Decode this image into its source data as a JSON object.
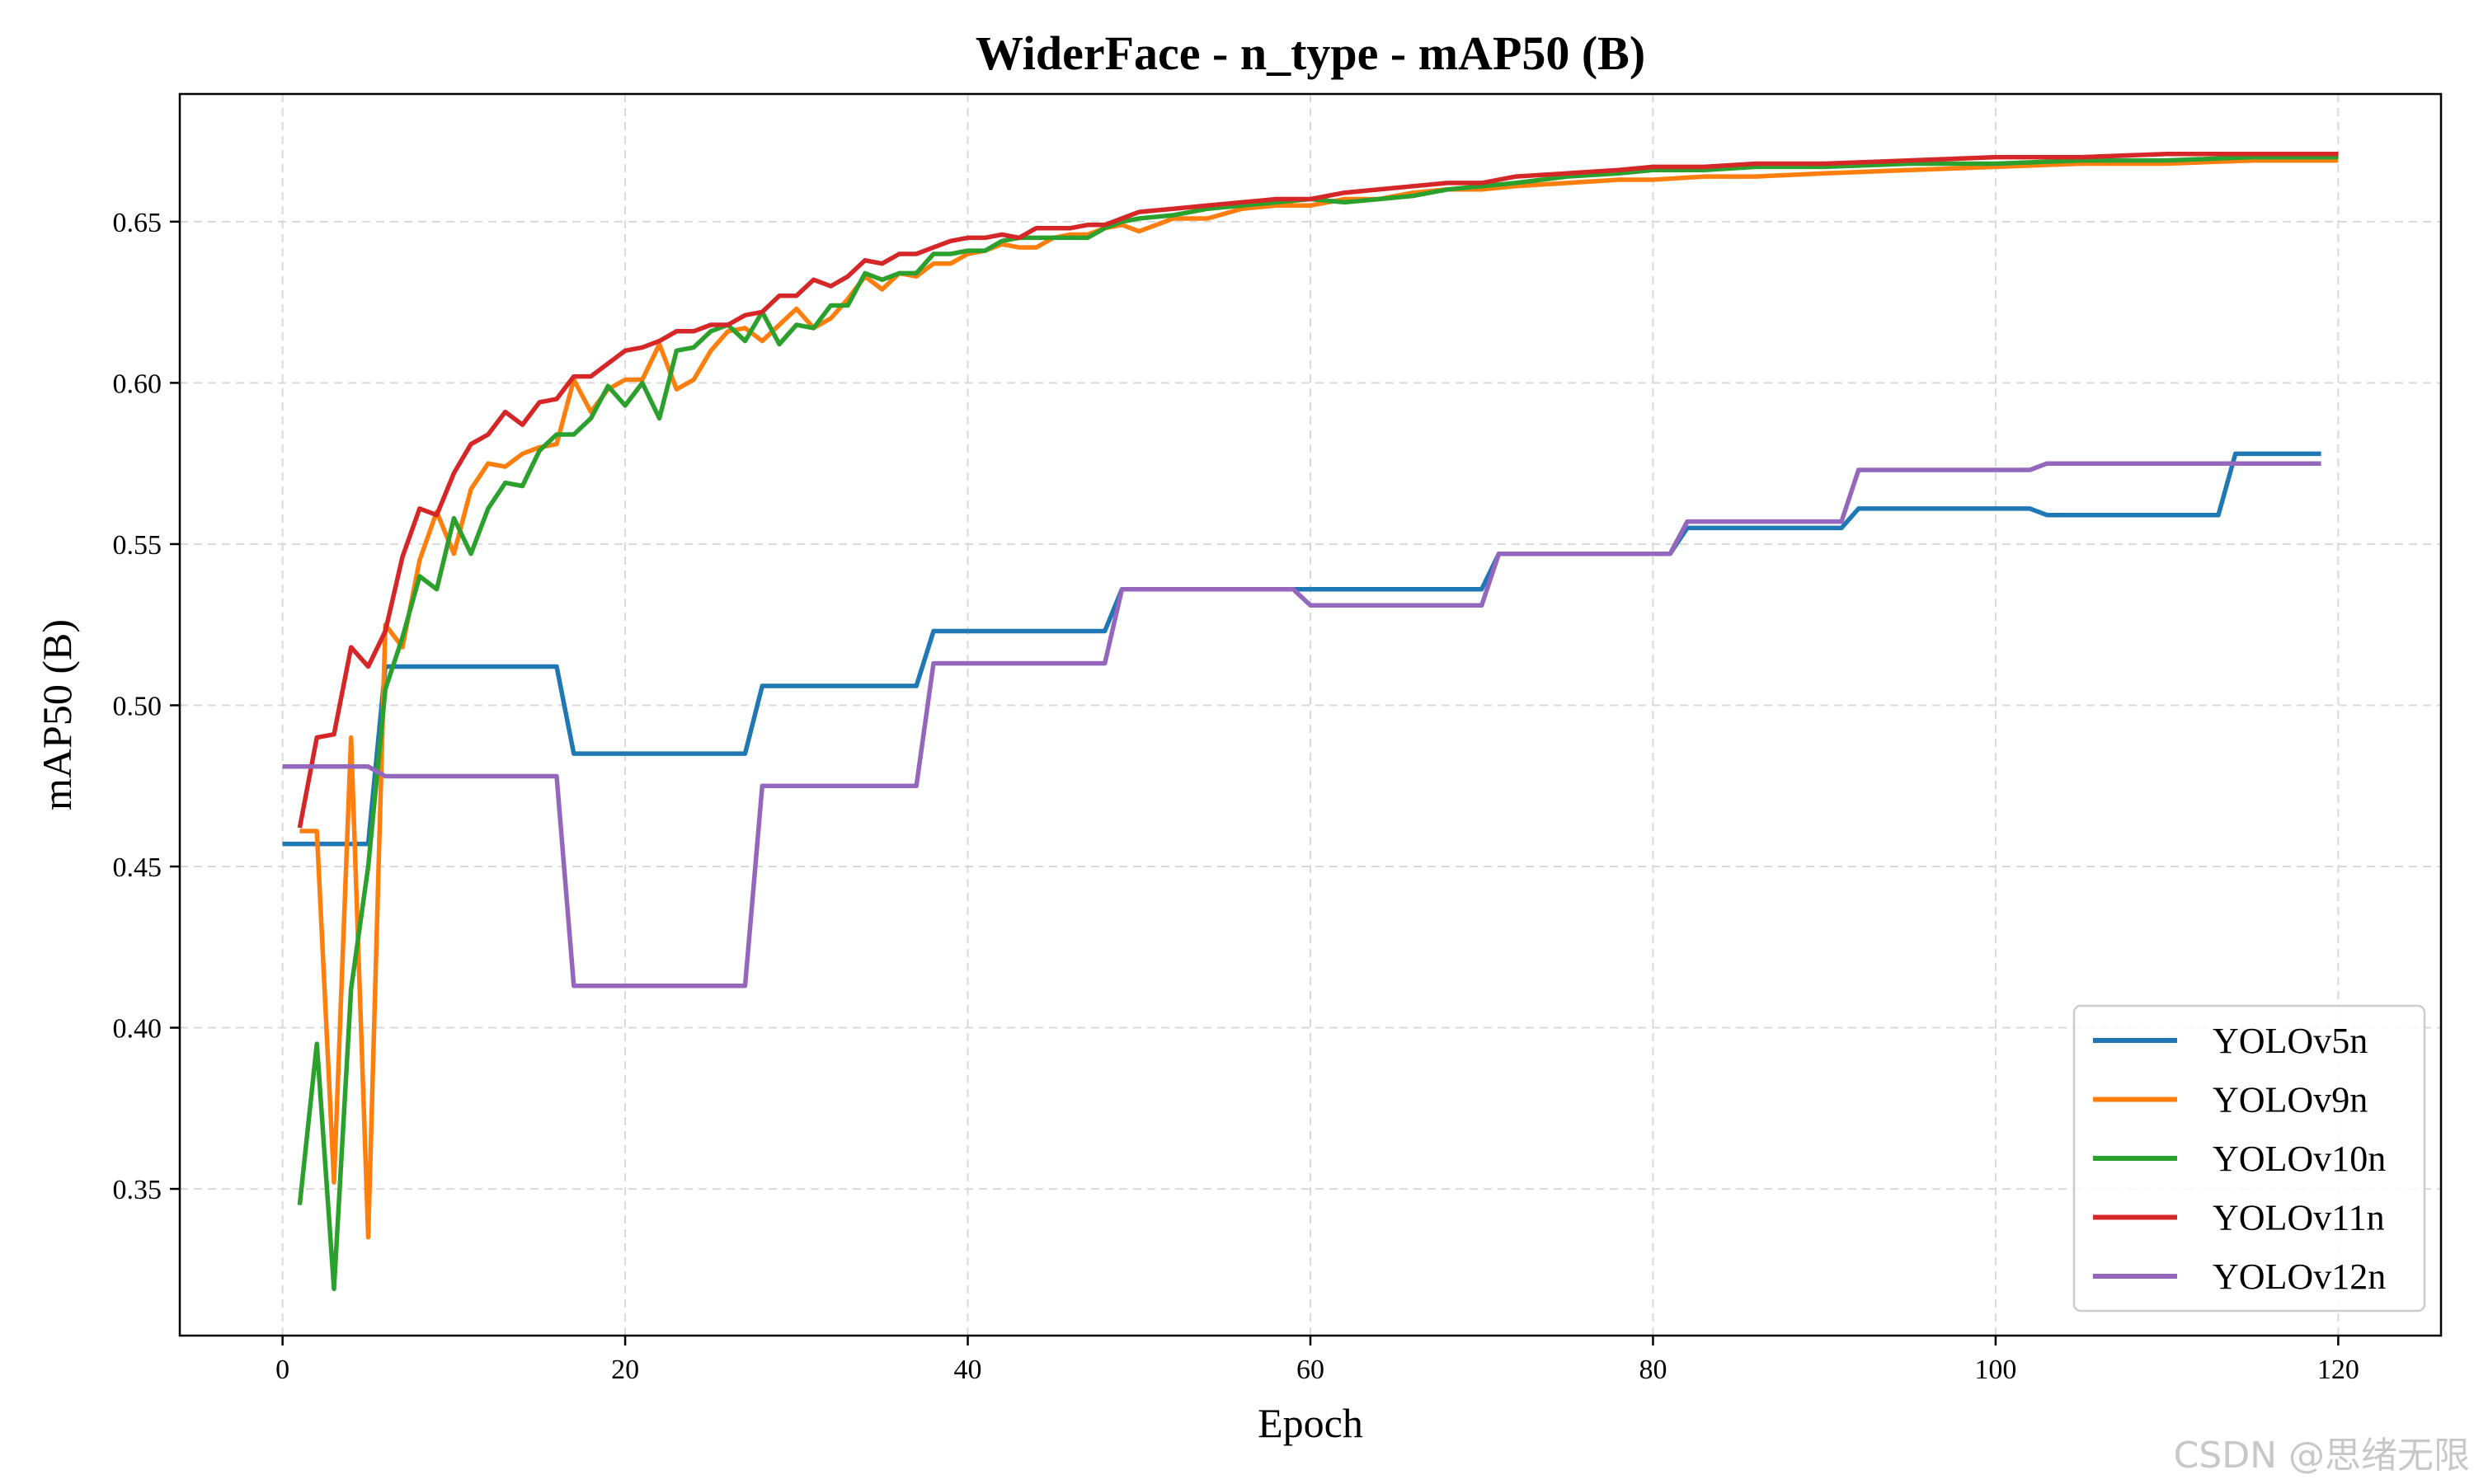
{
  "chart_data": {
    "type": "line",
    "title": "WiderFace - n_type - mAP50 (B)",
    "xlabel": "Epoch",
    "ylabel": "mAP50 (B)",
    "xlim": [
      -6,
      126
    ],
    "ylim": [
      0.3045,
      0.6896
    ],
    "xticks": [
      0,
      20,
      40,
      60,
      80,
      100,
      120
    ],
    "yticks": [
      0.35,
      0.4,
      0.45,
      0.5,
      0.55,
      0.6,
      0.65
    ],
    "ytick_labels": [
      "0.35",
      "0.40",
      "0.45",
      "0.50",
      "0.55",
      "0.60",
      "0.65"
    ],
    "grid": true,
    "legend_position": "lower-right",
    "watermark": "CSDN @思绪无限",
    "series": [
      {
        "name": "YOLOv5n",
        "color": "#1f77b4",
        "points": [
          [
            0,
            0.457
          ],
          [
            5,
            0.457
          ],
          [
            6,
            0.512
          ],
          [
            16,
            0.512
          ],
          [
            17,
            0.485
          ],
          [
            27,
            0.485
          ],
          [
            28,
            0.506
          ],
          [
            37,
            0.506
          ],
          [
            38,
            0.523
          ],
          [
            48,
            0.523
          ],
          [
            49,
            0.536
          ],
          [
            70,
            0.536
          ],
          [
            71,
            0.547
          ],
          [
            81,
            0.547
          ],
          [
            82,
            0.555
          ],
          [
            91,
            0.555
          ],
          [
            92,
            0.561
          ],
          [
            102,
            0.561
          ],
          [
            103,
            0.559
          ],
          [
            113,
            0.559
          ],
          [
            114,
            0.578
          ],
          [
            119,
            0.578
          ]
        ]
      },
      {
        "name": "YOLOv9n",
        "color": "#ff7f0e",
        "points": [
          [
            1,
            0.461
          ],
          [
            2,
            0.461
          ],
          [
            3,
            0.352
          ],
          [
            4,
            0.49
          ],
          [
            5,
            0.335
          ],
          [
            6,
            0.525
          ],
          [
            7,
            0.518
          ],
          [
            8,
            0.545
          ],
          [
            9,
            0.56
          ],
          [
            10,
            0.547
          ],
          [
            11,
            0.567
          ],
          [
            12,
            0.575
          ],
          [
            13,
            0.574
          ],
          [
            14,
            0.578
          ],
          [
            15,
            0.58
          ],
          [
            16,
            0.581
          ],
          [
            17,
            0.601
          ],
          [
            18,
            0.591
          ],
          [
            19,
            0.598
          ],
          [
            20,
            0.601
          ],
          [
            21,
            0.601
          ],
          [
            22,
            0.612
          ],
          [
            23,
            0.598
          ],
          [
            24,
            0.601
          ],
          [
            25,
            0.61
          ],
          [
            26,
            0.616
          ],
          [
            27,
            0.617
          ],
          [
            28,
            0.613
          ],
          [
            29,
            0.618
          ],
          [
            30,
            0.623
          ],
          [
            31,
            0.617
          ],
          [
            32,
            0.62
          ],
          [
            33,
            0.626
          ],
          [
            34,
            0.633
          ],
          [
            35,
            0.629
          ],
          [
            36,
            0.634
          ],
          [
            37,
            0.633
          ],
          [
            38,
            0.637
          ],
          [
            39,
            0.637
          ],
          [
            40,
            0.64
          ],
          [
            41,
            0.641
          ],
          [
            42,
            0.643
          ],
          [
            43,
            0.642
          ],
          [
            44,
            0.642
          ],
          [
            45,
            0.645
          ],
          [
            46,
            0.646
          ],
          [
            47,
            0.646
          ],
          [
            48,
            0.648
          ],
          [
            49,
            0.649
          ],
          [
            50,
            0.647
          ],
          [
            52,
            0.651
          ],
          [
            54,
            0.651
          ],
          [
            56,
            0.654
          ],
          [
            58,
            0.655
          ],
          [
            60,
            0.655
          ],
          [
            62,
            0.657
          ],
          [
            64,
            0.657
          ],
          [
            66,
            0.659
          ],
          [
            68,
            0.66
          ],
          [
            70,
            0.66
          ],
          [
            72,
            0.661
          ],
          [
            75,
            0.662
          ],
          [
            78,
            0.663
          ],
          [
            80,
            0.663
          ],
          [
            83,
            0.664
          ],
          [
            86,
            0.664
          ],
          [
            90,
            0.665
          ],
          [
            95,
            0.666
          ],
          [
            100,
            0.667
          ],
          [
            105,
            0.668
          ],
          [
            110,
            0.668
          ],
          [
            115,
            0.669
          ],
          [
            120,
            0.669
          ]
        ]
      },
      {
        "name": "YOLOv10n",
        "color": "#2ca02c",
        "points": [
          [
            1,
            0.345
          ],
          [
            2,
            0.395
          ],
          [
            3,
            0.319
          ],
          [
            4,
            0.412
          ],
          [
            5,
            0.45
          ],
          [
            6,
            0.505
          ],
          [
            7,
            0.521
          ],
          [
            8,
            0.54
          ],
          [
            9,
            0.536
          ],
          [
            10,
            0.558
          ],
          [
            11,
            0.547
          ],
          [
            12,
            0.561
          ],
          [
            13,
            0.569
          ],
          [
            14,
            0.568
          ],
          [
            15,
            0.579
          ],
          [
            16,
            0.584
          ],
          [
            17,
            0.584
          ],
          [
            18,
            0.589
          ],
          [
            19,
            0.599
          ],
          [
            20,
            0.593
          ],
          [
            21,
            0.6
          ],
          [
            22,
            0.589
          ],
          [
            23,
            0.61
          ],
          [
            24,
            0.611
          ],
          [
            25,
            0.616
          ],
          [
            26,
            0.618
          ],
          [
            27,
            0.613
          ],
          [
            28,
            0.622
          ],
          [
            29,
            0.612
          ],
          [
            30,
            0.618
          ],
          [
            31,
            0.617
          ],
          [
            32,
            0.624
          ],
          [
            33,
            0.624
          ],
          [
            34,
            0.634
          ],
          [
            35,
            0.632
          ],
          [
            36,
            0.634
          ],
          [
            37,
            0.634
          ],
          [
            38,
            0.64
          ],
          [
            39,
            0.64
          ],
          [
            40,
            0.641
          ],
          [
            41,
            0.641
          ],
          [
            42,
            0.644
          ],
          [
            43,
            0.645
          ],
          [
            44,
            0.645
          ],
          [
            45,
            0.645
          ],
          [
            46,
            0.645
          ],
          [
            47,
            0.645
          ],
          [
            48,
            0.648
          ],
          [
            49,
            0.65
          ],
          [
            50,
            0.651
          ],
          [
            52,
            0.652
          ],
          [
            54,
            0.654
          ],
          [
            56,
            0.655
          ],
          [
            58,
            0.656
          ],
          [
            60,
            0.657
          ],
          [
            62,
            0.656
          ],
          [
            64,
            0.657
          ],
          [
            66,
            0.658
          ],
          [
            68,
            0.66
          ],
          [
            70,
            0.661
          ],
          [
            72,
            0.662
          ],
          [
            75,
            0.664
          ],
          [
            78,
            0.665
          ],
          [
            80,
            0.666
          ],
          [
            83,
            0.666
          ],
          [
            86,
            0.667
          ],
          [
            90,
            0.667
          ],
          [
            95,
            0.668
          ],
          [
            100,
            0.668
          ],
          [
            105,
            0.669
          ],
          [
            110,
            0.669
          ],
          [
            115,
            0.67
          ],
          [
            120,
            0.67
          ]
        ]
      },
      {
        "name": "YOLOv11n",
        "color": "#d62728",
        "points": [
          [
            1,
            0.462
          ],
          [
            2,
            0.49
          ],
          [
            3,
            0.491
          ],
          [
            4,
            0.518
          ],
          [
            5,
            0.512
          ],
          [
            6,
            0.523
          ],
          [
            7,
            0.546
          ],
          [
            8,
            0.561
          ],
          [
            9,
            0.559
          ],
          [
            10,
            0.572
          ],
          [
            11,
            0.581
          ],
          [
            12,
            0.584
          ],
          [
            13,
            0.591
          ],
          [
            14,
            0.587
          ],
          [
            15,
            0.594
          ],
          [
            16,
            0.595
          ],
          [
            17,
            0.602
          ],
          [
            18,
            0.602
          ],
          [
            19,
            0.606
          ],
          [
            20,
            0.61
          ],
          [
            21,
            0.611
          ],
          [
            22,
            0.613
          ],
          [
            23,
            0.616
          ],
          [
            24,
            0.616
          ],
          [
            25,
            0.618
          ],
          [
            26,
            0.618
          ],
          [
            27,
            0.621
          ],
          [
            28,
            0.622
          ],
          [
            29,
            0.627
          ],
          [
            30,
            0.627
          ],
          [
            31,
            0.632
          ],
          [
            32,
            0.63
          ],
          [
            33,
            0.633
          ],
          [
            34,
            0.638
          ],
          [
            35,
            0.637
          ],
          [
            36,
            0.64
          ],
          [
            37,
            0.64
          ],
          [
            38,
            0.642
          ],
          [
            39,
            0.644
          ],
          [
            40,
            0.645
          ],
          [
            41,
            0.645
          ],
          [
            42,
            0.646
          ],
          [
            43,
            0.645
          ],
          [
            44,
            0.648
          ],
          [
            45,
            0.648
          ],
          [
            46,
            0.648
          ],
          [
            47,
            0.649
          ],
          [
            48,
            0.649
          ],
          [
            49,
            0.651
          ],
          [
            50,
            0.653
          ],
          [
            52,
            0.654
          ],
          [
            54,
            0.655
          ],
          [
            56,
            0.656
          ],
          [
            58,
            0.657
          ],
          [
            60,
            0.657
          ],
          [
            62,
            0.659
          ],
          [
            64,
            0.66
          ],
          [
            66,
            0.661
          ],
          [
            68,
            0.662
          ],
          [
            70,
            0.662
          ],
          [
            72,
            0.664
          ],
          [
            75,
            0.665
          ],
          [
            78,
            0.666
          ],
          [
            80,
            0.667
          ],
          [
            83,
            0.667
          ],
          [
            86,
            0.668
          ],
          [
            90,
            0.668
          ],
          [
            95,
            0.669
          ],
          [
            100,
            0.67
          ],
          [
            105,
            0.67
          ],
          [
            110,
            0.671
          ],
          [
            115,
            0.671
          ],
          [
            120,
            0.671
          ]
        ]
      },
      {
        "name": "YOLOv12n",
        "color": "#9467bd",
        "points": [
          [
            0,
            0.481
          ],
          [
            5,
            0.481
          ],
          [
            6,
            0.478
          ],
          [
            16,
            0.478
          ],
          [
            17,
            0.413
          ],
          [
            27,
            0.413
          ],
          [
            28,
            0.475
          ],
          [
            37,
            0.475
          ],
          [
            38,
            0.513
          ],
          [
            48,
            0.513
          ],
          [
            49,
            0.536
          ],
          [
            59,
            0.536
          ],
          [
            60,
            0.531
          ],
          [
            70,
            0.531
          ],
          [
            71,
            0.547
          ],
          [
            81,
            0.547
          ],
          [
            82,
            0.557
          ],
          [
            91,
            0.557
          ],
          [
            92,
            0.573
          ],
          [
            102,
            0.573
          ],
          [
            103,
            0.575
          ],
          [
            119,
            0.575
          ]
        ]
      }
    ]
  }
}
